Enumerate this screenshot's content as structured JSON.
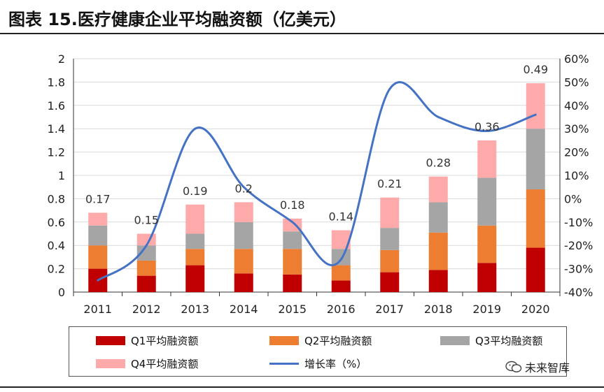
{
  "title": "图表 15.医疗健康企业平均融资额（亿美元）",
  "watermark": "未来智库",
  "colors": {
    "q1": "#c00000",
    "q2": "#ed7d31",
    "q3": "#a5a5a5",
    "q4": "#ffaaaa",
    "growth": "#4472c4"
  },
  "chart_data": {
    "type": "bar",
    "stacked": true,
    "categories": [
      "2011",
      "2012",
      "2013",
      "2014",
      "2015",
      "2016",
      "2017",
      "2018",
      "2019",
      "2020"
    ],
    "series": [
      {
        "name": "Q1平均融资额",
        "values": [
          0.2,
          0.14,
          0.23,
          0.16,
          0.15,
          0.1,
          0.17,
          0.19,
          0.25,
          0.38
        ]
      },
      {
        "name": "Q2平均融资额",
        "values": [
          0.2,
          0.13,
          0.14,
          0.21,
          0.22,
          0.13,
          0.19,
          0.32,
          0.32,
          0.5
        ]
      },
      {
        "name": "Q3平均融资额",
        "values": [
          0.17,
          0.13,
          0.13,
          0.23,
          0.15,
          0.14,
          0.19,
          0.26,
          0.41,
          0.52
        ]
      },
      {
        "name": "Q4平均融资额",
        "values": [
          0.11,
          0.1,
          0.25,
          0.17,
          0.11,
          0.16,
          0.26,
          0.22,
          0.32,
          0.39
        ]
      }
    ],
    "line_series": {
      "name": "增长率（%）",
      "axis": "right",
      "values": [
        -35,
        -20,
        30,
        5,
        -10,
        -26,
        47,
        35,
        29,
        36
      ]
    },
    "annotations": [
      "0.17",
      "0.15",
      "0.19",
      "0.2",
      "0.18",
      "0.14",
      "0.21",
      "0.28",
      "0.36",
      "0.49"
    ],
    "left_axis": {
      "ticks": [
        "0",
        "0.2",
        "0.4",
        "0.6",
        "0.8",
        "1",
        "1.2",
        "1.4",
        "1.6",
        "1.8",
        "2"
      ],
      "ylim": [
        0,
        2
      ]
    },
    "right_axis": {
      "ticks": [
        "-40%",
        "-30%",
        "-20%",
        "-10%",
        "0%",
        "10%",
        "20%",
        "30%",
        "40%",
        "50%",
        "60%"
      ],
      "ylim": [
        -40,
        60
      ]
    },
    "legend": {
      "position": "bottom",
      "items": [
        "Q1平均融资额",
        "Q2平均融资额",
        "Q3平均融资额",
        "Q4平均融资额",
        "增长率（%）"
      ]
    }
  }
}
